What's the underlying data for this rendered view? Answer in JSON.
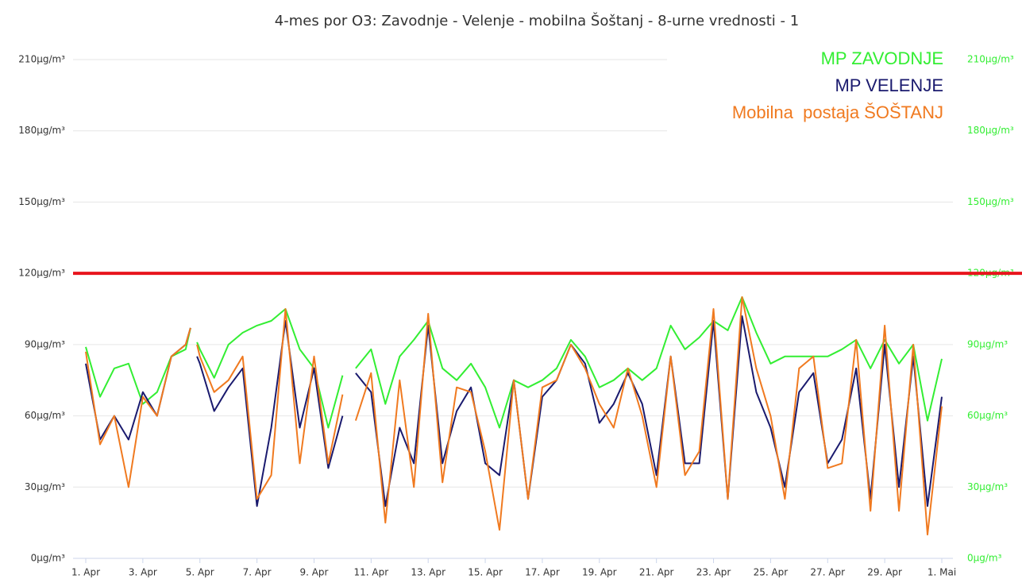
{
  "chart_data": {
    "type": "line",
    "title": "4-mes por O3: Zavodnje - Velenje - mobilna Šoštanj - 8-urne vrednosti - 1",
    "x": [
      1,
      1.5,
      2,
      2.5,
      3,
      3.5,
      4,
      4.5,
      4.67,
      4.8,
      4.9,
      5,
      5.5,
      6,
      6.5,
      7,
      7.5,
      8,
      8.5,
      9,
      9.5,
      10,
      10.25,
      10.46,
      11,
      11.5,
      12,
      12.5,
      13,
      13.5,
      14,
      14.5,
      15,
      15.5,
      16,
      16.5,
      17,
      17.5,
      18,
      18.5,
      19,
      19.5,
      20,
      20.5,
      21,
      21.5,
      22,
      22.5,
      23,
      23.5,
      24,
      24.5,
      25,
      25.5,
      26,
      26.5,
      27,
      27.5,
      28,
      28.5,
      29,
      29.5,
      30,
      30.5,
      31
    ],
    "series": [
      {
        "name": "MP ZAVODNJE",
        "color": "#33ee33",
        "axis": "y2",
        "values": [
          89,
          68,
          80,
          82,
          65,
          70,
          85,
          88,
          97,
          null,
          91,
          88,
          76,
          90,
          95,
          98,
          100,
          105,
          88,
          80,
          55,
          77,
          null,
          80,
          88,
          65,
          85,
          92,
          100,
          80,
          75,
          82,
          72,
          55,
          75,
          72,
          75,
          80,
          92,
          85,
          72,
          75,
          80,
          75,
          80,
          98,
          88,
          93,
          100,
          96,
          110,
          95,
          82,
          85,
          85,
          85,
          85,
          88,
          92,
          80,
          92,
          82,
          90,
          58,
          84
        ]
      },
      {
        "name": "MP VELENJE",
        "color": "#1a1a6e",
        "values": [
          82,
          50,
          60,
          50,
          70,
          60,
          85,
          90,
          97,
          null,
          85,
          82,
          62,
          72,
          80,
          22,
          55,
          100,
          55,
          80,
          38,
          60,
          null,
          78,
          70,
          22,
          55,
          40,
          98,
          40,
          62,
          72,
          40,
          35,
          75,
          25,
          68,
          75,
          90,
          82,
          57,
          65,
          78,
          65,
          35,
          85,
          40,
          40,
          100,
          25,
          102,
          70,
          55,
          30,
          70,
          78,
          40,
          50,
          80,
          25,
          90,
          30,
          85,
          22,
          68
        ]
      },
      {
        "name": "Mobilna  postaja ŠOŠTANJ",
        "color": "#f07a20",
        "values": [
          87,
          48,
          60,
          30,
          68,
          60,
          85,
          90,
          97,
          null,
          90,
          85,
          70,
          75,
          85,
          25,
          35,
          105,
          40,
          85,
          40,
          69,
          null,
          58,
          78,
          15,
          75,
          30,
          103,
          32,
          72,
          70,
          45,
          12,
          75,
          25,
          72,
          75,
          90,
          80,
          65,
          55,
          80,
          60,
          30,
          85,
          35,
          45,
          105,
          25,
          110,
          80,
          60,
          25,
          80,
          85,
          38,
          40,
          92,
          20,
          98,
          20,
          90,
          10,
          64
        ]
      }
    ],
    "xlim": [
      1,
      31
    ],
    "xticks": [
      {
        "value": 1,
        "label": "1. Apr"
      },
      {
        "value": 3,
        "label": "3. Apr"
      },
      {
        "value": 5,
        "label": "5. Apr"
      },
      {
        "value": 7,
        "label": "7. Apr"
      },
      {
        "value": 9,
        "label": "9. Apr"
      },
      {
        "value": 11,
        "label": "11. Apr"
      },
      {
        "value": 13,
        "label": "13. Apr"
      },
      {
        "value": 15,
        "label": "15. Apr"
      },
      {
        "value": 17,
        "label": "17. Apr"
      },
      {
        "value": 19,
        "label": "19. Apr"
      },
      {
        "value": 21,
        "label": "21. Apr"
      },
      {
        "value": 23,
        "label": "23. Apr"
      },
      {
        "value": 25,
        "label": "25. Apr"
      },
      {
        "value": 27,
        "label": "27. Apr"
      },
      {
        "value": 29,
        "label": "29. Apr"
      },
      {
        "value": 31,
        "label": "1. Mai"
      }
    ],
    "ylim": [
      0,
      210
    ],
    "yticks": [
      {
        "value": 0,
        "label": "0µg/m³"
      },
      {
        "value": 30,
        "label": "30µg/m³"
      },
      {
        "value": 60,
        "label": "60µg/m³"
      },
      {
        "value": 90,
        "label": "90µg/m³"
      },
      {
        "value": 120,
        "label": "120µg/m³"
      },
      {
        "value": 150,
        "label": "150µg/m³"
      },
      {
        "value": 180,
        "label": "180µg/m³"
      },
      {
        "value": 210,
        "label": "210µg/m³"
      }
    ],
    "y2lim": [
      0,
      210
    ],
    "y2ticks": [
      {
        "value": 0,
        "label": "0µg/m³"
      },
      {
        "value": 30,
        "label": "30µg/m³"
      },
      {
        "value": 60,
        "label": "60µg/m³"
      },
      {
        "value": 90,
        "label": "90µg/m³"
      },
      {
        "value": 120,
        "label": "120µg/m³"
      },
      {
        "value": 150,
        "label": "150µg/m³"
      },
      {
        "value": 180,
        "label": "180µg/m³"
      },
      {
        "value": 210,
        "label": "210µg/m³"
      }
    ],
    "y2color": "#33ee33",
    "threshold": 120,
    "threshold_color": "#e8141c",
    "grid": true,
    "legend": "top-right"
  }
}
